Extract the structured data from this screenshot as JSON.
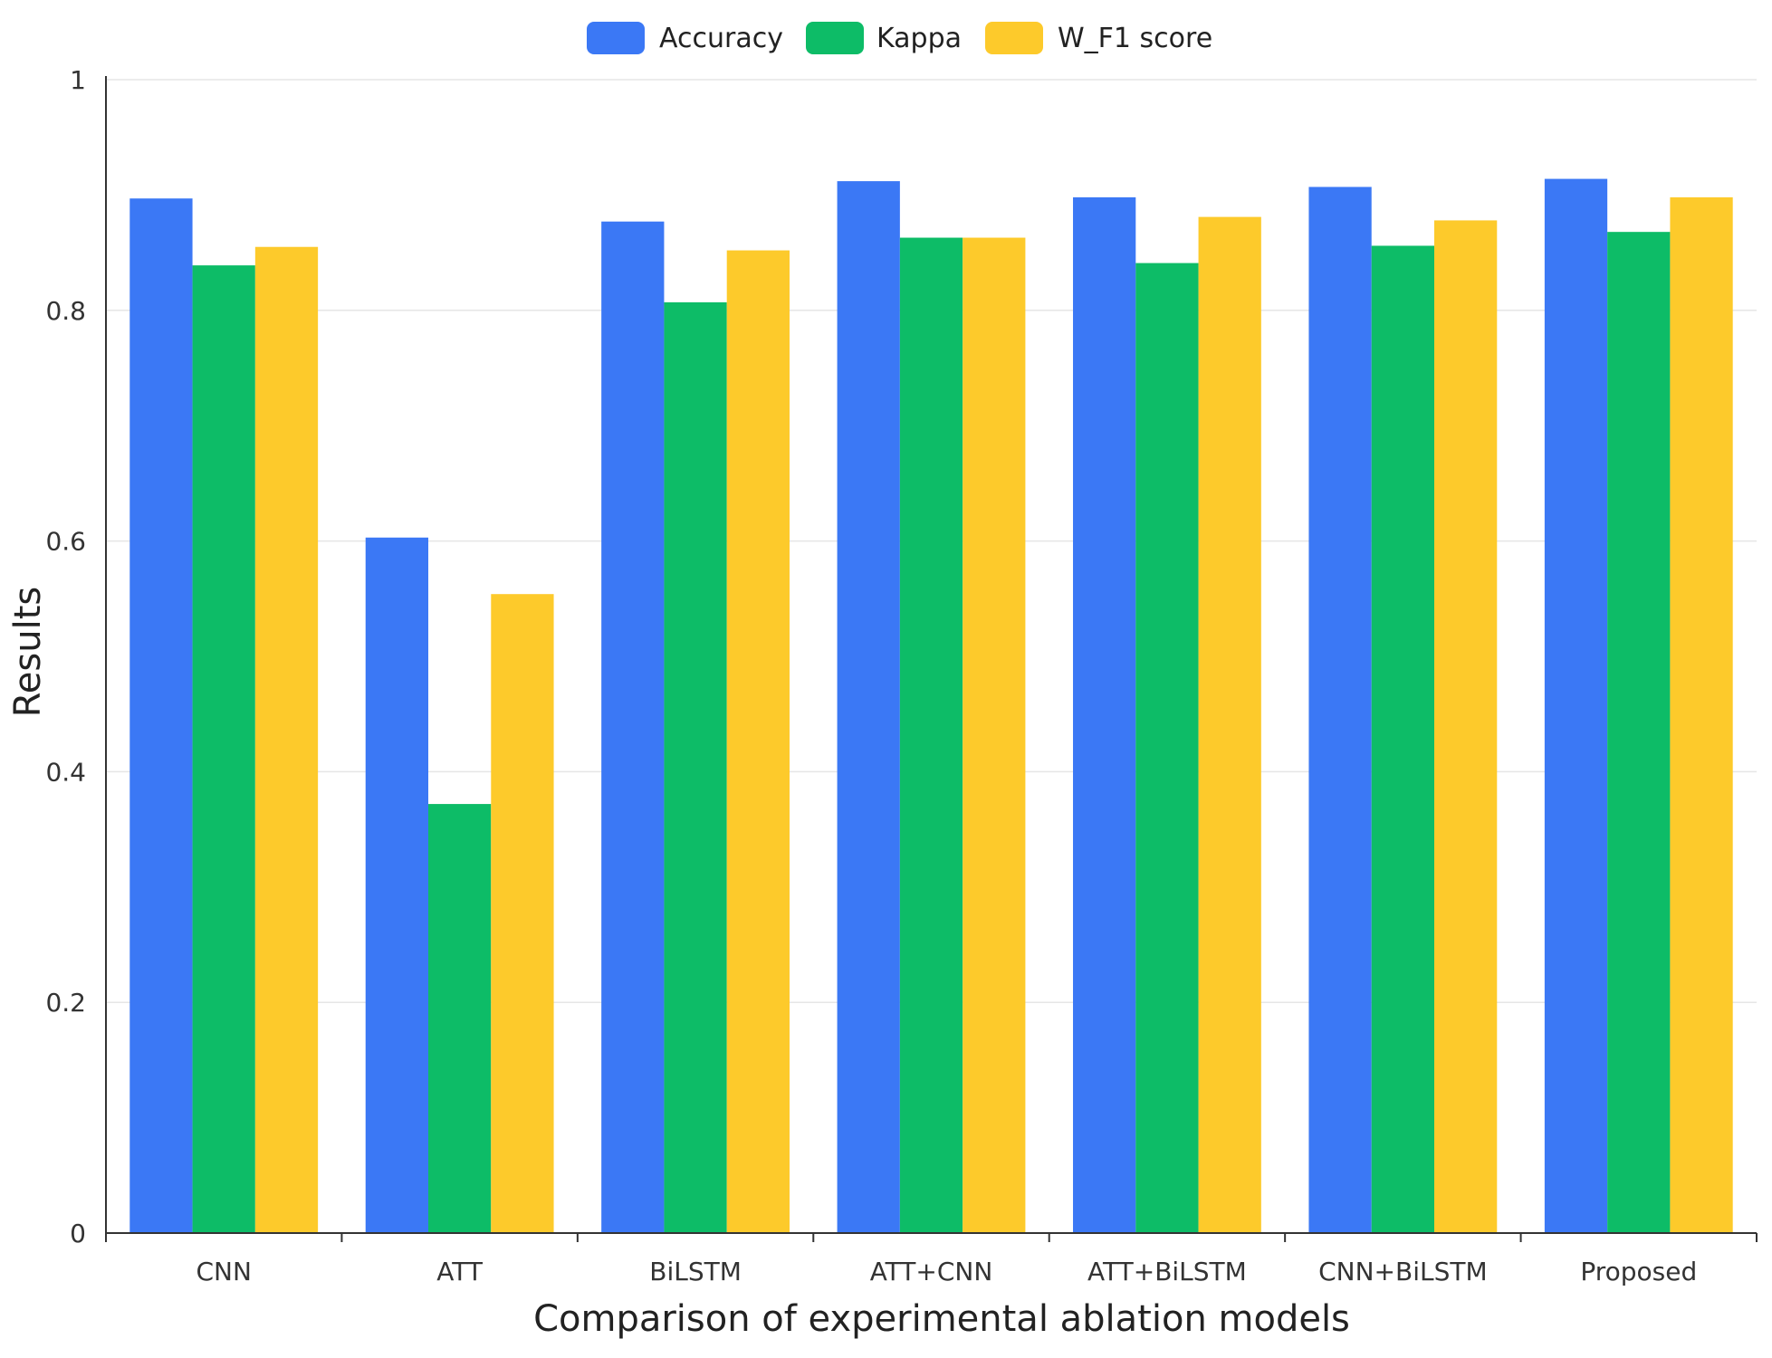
{
  "chart_data": {
    "type": "bar",
    "title": "",
    "xlabel": "Comparison of experimental ablation models",
    "ylabel": "Results",
    "ylim": [
      0,
      1
    ],
    "yticks": [
      0,
      0.2,
      0.4,
      0.6,
      0.8,
      1
    ],
    "ytick_labels": [
      "0",
      "0.2",
      "0.4",
      "0.6",
      "0.8",
      "1"
    ],
    "grid": true,
    "legend_position": "top-center",
    "categories": [
      "CNN",
      "ATT",
      "BiLSTM",
      "ATT+CNN",
      "ATT+BiLSTM",
      "CNN+BiLSTM",
      "Proposed"
    ],
    "series": [
      {
        "name": "Accuracy",
        "color": "#3b78f5",
        "values": [
          0.897,
          0.603,
          0.877,
          0.912,
          0.898,
          0.907,
          0.914
        ]
      },
      {
        "name": "Kappa",
        "color": "#0dbc67",
        "values": [
          0.839,
          0.372,
          0.807,
          0.863,
          0.841,
          0.856,
          0.868
        ]
      },
      {
        "name": "W_F1 score",
        "color": "#fdca2b",
        "values": [
          0.855,
          0.554,
          0.852,
          0.863,
          0.881,
          0.878,
          0.898
        ]
      }
    ]
  }
}
